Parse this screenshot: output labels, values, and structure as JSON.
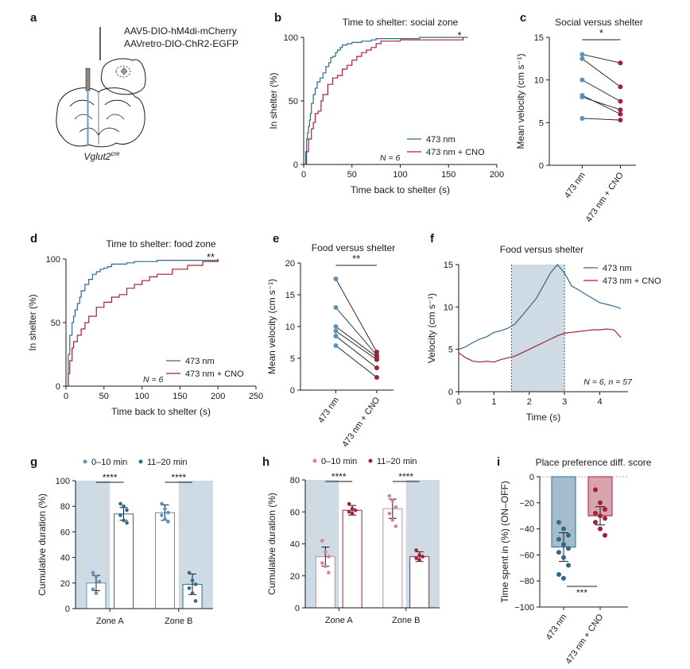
{
  "colors": {
    "blue": "#2e6a8c",
    "red": "#a3203a",
    "light_blue": "#5b93bf",
    "light_red": "#d9828f",
    "shade": "#cfdbe4",
    "bar_blue": "#a5bccd",
    "bar_red": "#d8a4ad"
  },
  "panel_a": {
    "letter": "a",
    "virus1": "AAV5-DIO-hM4di-mCherry",
    "virus2": "AAVretro-DIO-ChR2-EGFP",
    "mouse_line": "Vglut2",
    "mouse_line_sup": "cre"
  },
  "chart_data": [
    {
      "id": "b",
      "type": "line",
      "title": "Time to shelter: social zone",
      "xlabel": "Time back to shelter (s)",
      "ylabel": "In shelter (%)",
      "xlim": [
        0,
        200
      ],
      "ylim": [
        0,
        100
      ],
      "xticks": [
        "0",
        "50",
        "100",
        "150",
        "200"
      ],
      "yticks": [
        "0",
        "50",
        "100"
      ],
      "significance": "*",
      "n_label": "N = 6",
      "series": [
        {
          "name": "473 nm",
          "color_key": "blue",
          "x": [
            0,
            2,
            3,
            4,
            5,
            6,
            7,
            8,
            10,
            12,
            14,
            17,
            20,
            23,
            26,
            28,
            30,
            33,
            35,
            38,
            40,
            45,
            50,
            55,
            60,
            65,
            70,
            75,
            80,
            100,
            120,
            150,
            170
          ],
          "y": [
            0,
            10,
            20,
            25,
            30,
            35,
            40,
            48,
            55,
            60,
            65,
            68,
            72,
            77,
            80,
            84,
            85,
            88,
            90,
            92,
            94,
            95,
            96,
            96,
            97,
            97,
            98,
            99,
            99,
            99,
            100,
            100,
            100
          ]
        },
        {
          "name": "473 nm + CNO",
          "color_key": "red",
          "x": [
            0,
            3,
            5,
            8,
            10,
            12,
            15,
            18,
            20,
            25,
            30,
            35,
            40,
            45,
            50,
            55,
            60,
            65,
            70,
            75,
            80,
            100,
            120,
            165
          ],
          "y": [
            0,
            10,
            20,
            28,
            33,
            40,
            42,
            50,
            55,
            63,
            68,
            70,
            75,
            78,
            82,
            85,
            88,
            90,
            92,
            95,
            97,
            98,
            98,
            100
          ]
        }
      ]
    },
    {
      "id": "c",
      "type": "scatter",
      "title": "Social versus shelter",
      "ylabel": "Mean velocity (cm s⁻¹)",
      "ylim": [
        0,
        15
      ],
      "yticks": [
        "0",
        "5",
        "10",
        "15"
      ],
      "categories": [
        "473 nm",
        "473 nm + CNO"
      ],
      "significance": "*",
      "pairs": [
        [
          13,
          12
        ],
        [
          12.5,
          9.2
        ],
        [
          10,
          7.5
        ],
        [
          8,
          6.5
        ],
        [
          8.2,
          6
        ],
        [
          5.5,
          5.3
        ]
      ]
    },
    {
      "id": "d",
      "type": "line",
      "title": "Time to shelter: food zone",
      "xlabel": "Time back to shelter (s)",
      "ylabel": "In shelter (%)",
      "xlim": [
        0,
        250
      ],
      "ylim": [
        0,
        100
      ],
      "xticks": [
        "0",
        "50",
        "100",
        "150",
        "200",
        "250"
      ],
      "yticks": [
        "0",
        "50",
        "100"
      ],
      "significance": "**",
      "n_label": "N = 6",
      "series": [
        {
          "name": "473 nm",
          "color_key": "blue",
          "x": [
            0,
            3,
            5,
            8,
            10,
            12,
            15,
            18,
            20,
            25,
            30,
            35,
            40,
            45,
            50,
            55,
            60,
            70,
            80,
            90,
            100,
            120,
            150,
            200
          ],
          "y": [
            0,
            25,
            40,
            50,
            55,
            60,
            65,
            70,
            75,
            80,
            84,
            88,
            90,
            92,
            93,
            94,
            96,
            96,
            97,
            98,
            98,
            99,
            99,
            100
          ]
        },
        {
          "name": "473 nm + CNO",
          "color_key": "red",
          "x": [
            0,
            3,
            5,
            8,
            10,
            15,
            20,
            25,
            30,
            40,
            50,
            60,
            70,
            80,
            90,
            100,
            110,
            120,
            140,
            160,
            180,
            200
          ],
          "y": [
            0,
            10,
            20,
            30,
            35,
            40,
            45,
            50,
            55,
            62,
            66,
            70,
            72,
            77,
            80,
            83,
            86,
            88,
            92,
            95,
            98,
            100
          ]
        }
      ]
    },
    {
      "id": "e",
      "type": "scatter",
      "title": "Food versus shelter",
      "ylabel": "Mean velocity (cm s⁻¹)",
      "ylim": [
        0,
        20
      ],
      "yticks": [
        "0",
        "5",
        "10",
        "15",
        "20"
      ],
      "categories": [
        "473 nm",
        "473 nm + CNO"
      ],
      "significance": "**",
      "pairs": [
        [
          17.5,
          6
        ],
        [
          13,
          5.5
        ],
        [
          10,
          5.2
        ],
        [
          9.3,
          4.8
        ],
        [
          8.5,
          3.5
        ],
        [
          7,
          2
        ]
      ]
    },
    {
      "id": "f",
      "type": "line",
      "title": "Food versus shelter",
      "xlabel": "Time (s)",
      "ylabel": "Velocity (cm s⁻¹)",
      "xlim": [
        0,
        4.8
      ],
      "ylim": [
        0,
        15
      ],
      "xticks": [
        "0",
        "1",
        "2",
        "3",
        "4"
      ],
      "yticks": [
        "0",
        "5",
        "10",
        "15"
      ],
      "stim_window": [
        1.5,
        3.0
      ],
      "n_label": "N = 6, n = 57",
      "series": [
        {
          "name": "473 nm",
          "color_key": "blue",
          "x": [
            0,
            0.2,
            0.4,
            0.6,
            0.8,
            1.0,
            1.2,
            1.4,
            1.6,
            1.8,
            2.0,
            2.2,
            2.4,
            2.6,
            2.8,
            3.0,
            3.2,
            3.4,
            3.6,
            3.8,
            4.0,
            4.2,
            4.4,
            4.6
          ],
          "y": [
            5,
            5.3,
            5.8,
            6.2,
            6.5,
            7.0,
            7.2,
            7.5,
            8,
            9,
            10,
            11,
            12.5,
            14,
            15,
            14,
            12.5,
            12,
            11.5,
            11,
            10.5,
            10.3,
            10.1,
            9.8
          ]
        },
        {
          "name": "473 nm + CNO",
          "color_key": "red",
          "x": [
            0,
            0.2,
            0.4,
            0.6,
            0.8,
            1.0,
            1.2,
            1.4,
            1.6,
            1.8,
            2.0,
            2.2,
            2.4,
            2.6,
            2.8,
            3.0,
            3.2,
            3.4,
            3.6,
            3.8,
            4.0,
            4.2,
            4.4,
            4.6
          ],
          "y": [
            4.6,
            4,
            3.6,
            3.5,
            3.6,
            3.5,
            3.8,
            4.0,
            4.2,
            4.6,
            5.0,
            5.4,
            5.8,
            6.2,
            6.6,
            6.9,
            7.0,
            7.1,
            7.2,
            7.3,
            7.3,
            7.4,
            7.3,
            6.4
          ]
        }
      ]
    },
    {
      "id": "g",
      "type": "bar",
      "ylabel": "Cumulative duration (%)",
      "ylim": [
        0,
        100
      ],
      "yticks": [
        "0",
        "20",
        "40",
        "60",
        "80",
        "100"
      ],
      "categories": [
        "Zone A",
        "Zone B"
      ],
      "legend": [
        "0–10 min",
        "11–20 min"
      ],
      "series": [
        {
          "name": "0–10 min",
          "values": [
            20,
            75
          ],
          "errors": [
            6,
            6
          ],
          "points": [
            [
              28,
              25,
              21,
              15,
              12
            ],
            [
              82,
              78,
              75,
              73,
              70,
              68
            ]
          ]
        },
        {
          "name": "11–20 min",
          "values": [
            74,
            19
          ],
          "errors": [
            5,
            8
          ],
          "points": [
            [
              82,
              80,
              77,
              73,
              69,
              67
            ],
            [
              28,
              22,
              19,
              16,
              12,
              6
            ]
          ]
        }
      ],
      "significance": [
        "****",
        "****"
      ]
    },
    {
      "id": "h",
      "type": "bar",
      "ylabel": "Cumulative duration (%)",
      "ylim": [
        0,
        80
      ],
      "yticks": [
        "0",
        "20",
        "40",
        "60",
        "80"
      ],
      "categories": [
        "Zone A",
        "Zone B"
      ],
      "legend": [
        "0–10 min",
        "11–20 min"
      ],
      "series": [
        {
          "name": "0–10 min",
          "values": [
            32,
            62
          ],
          "errors": [
            6,
            6
          ],
          "points": [
            [
              42,
              35,
              32,
              28,
              26,
              22
            ],
            [
              70,
              67,
              63,
              59,
              55,
              51
            ]
          ]
        },
        {
          "name": "11–20 min",
          "values": [
            61,
            32
          ],
          "errors": [
            3,
            3
          ],
          "points": [
            [
              65,
              62,
              61,
              60,
              59
            ],
            [
              36,
              33,
              32,
              31,
              30
            ]
          ]
        }
      ],
      "significance": [
        "****",
        "****"
      ]
    },
    {
      "id": "i",
      "type": "bar",
      "title": "Place preference diff. score",
      "ylabel": "Time spent in (%) (ON–OFF)",
      "ylim": [
        -100,
        0
      ],
      "yticks": [
        "0",
        "−20",
        "−40",
        "−60",
        "−80",
        "−100"
      ],
      "categories": [
        "473 nm",
        "473 nm + CNO"
      ],
      "values": [
        -54,
        -30
      ],
      "errors": [
        11,
        7
      ],
      "points": [
        [
          -35,
          -40,
          -45,
          -48,
          -52,
          -55,
          -58,
          -62,
          -68,
          -75,
          -78
        ],
        [
          -10,
          -20,
          -25,
          -28,
          -30,
          -32,
          -35,
          -40,
          -45
        ]
      ],
      "significance": "***"
    }
  ],
  "letters": [
    "b",
    "c",
    "d",
    "e",
    "f",
    "g",
    "h",
    "i"
  ]
}
